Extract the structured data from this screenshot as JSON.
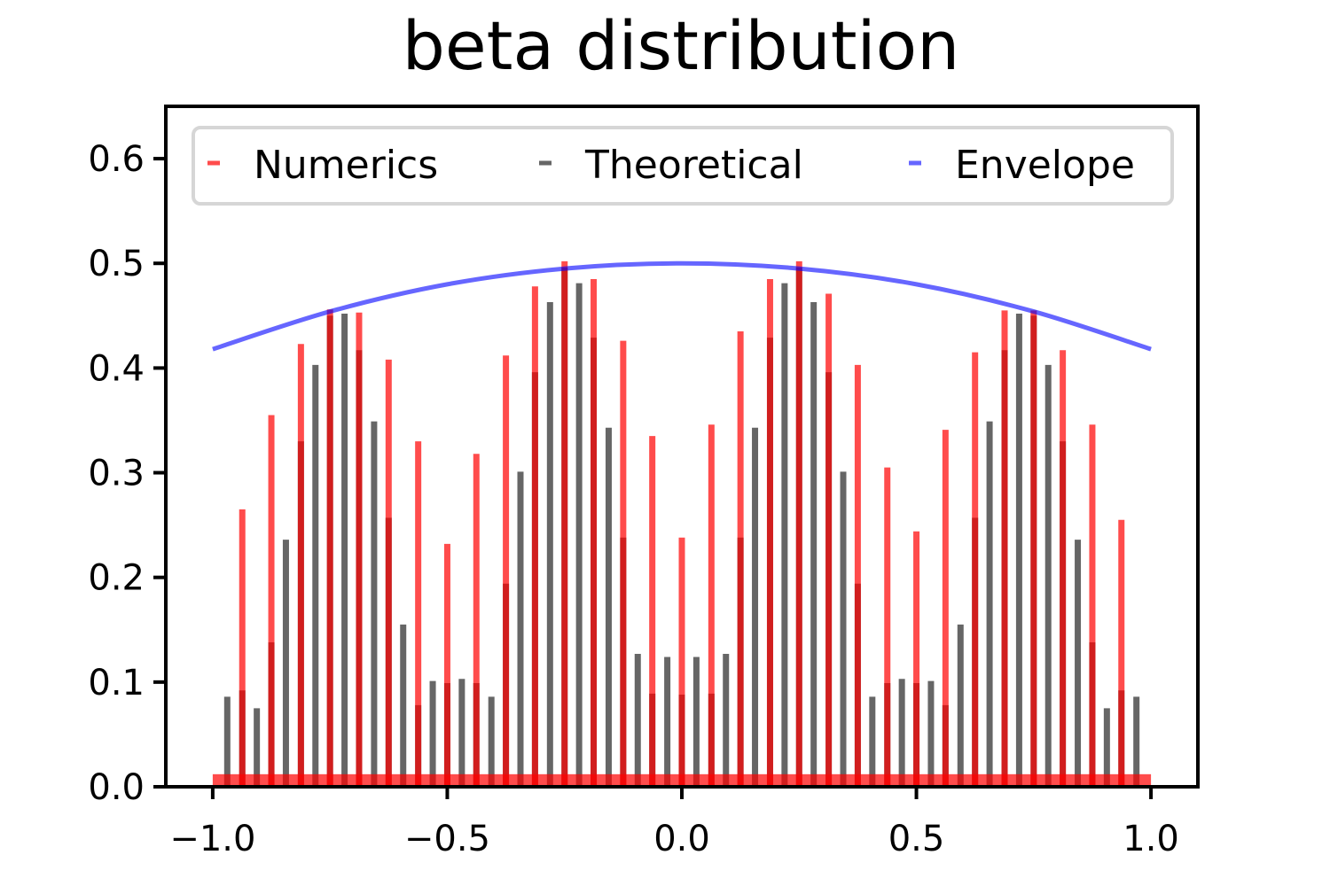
{
  "chart_data": {
    "type": "line",
    "title": "beta distribution",
    "xlabel": "",
    "ylabel": "",
    "xlim": [
      -1.1,
      1.1
    ],
    "ylim": [
      0.0,
      0.65
    ],
    "xticks": [
      -1.0,
      -0.5,
      0.0,
      0.5,
      1.0
    ],
    "xtick_labels": [
      "−1.0",
      "−0.5",
      "0.0",
      "0.5",
      "1.0"
    ],
    "yticks": [
      0.0,
      0.1,
      0.2,
      0.3,
      0.4,
      0.5,
      0.6
    ],
    "ytick_labels": [
      "0.0",
      "0.1",
      "0.2",
      "0.3",
      "0.4",
      "0.5",
      "0.6"
    ],
    "legend": {
      "placement": "top",
      "entries": [
        "Numerics",
        "Theoretical",
        "Envelope"
      ]
    },
    "colors": {
      "numerics": "#ff0000",
      "theoretical": "#000000",
      "envelope": "#0000ff"
    },
    "series": [
      {
        "name": "Numerics",
        "kind": "spikes",
        "baseline": 0.012,
        "x": [
          -0.937,
          -0.875,
          -0.812,
          -0.75,
          -0.688,
          -0.625,
          -0.562,
          -0.5,
          -0.438,
          -0.375,
          -0.313,
          -0.25,
          -0.188,
          -0.125,
          -0.063,
          0.0,
          0.063,
          0.125,
          0.188,
          0.25,
          0.313,
          0.375,
          0.438,
          0.5,
          0.562,
          0.625,
          0.688,
          0.75,
          0.812,
          0.875,
          0.937
        ],
        "values": [
          0.265,
          0.355,
          0.423,
          0.456,
          0.453,
          0.408,
          0.33,
          0.232,
          0.318,
          0.412,
          0.478,
          0.502,
          0.485,
          0.426,
          0.335,
          0.238,
          0.346,
          0.435,
          0.485,
          0.502,
          0.471,
          0.403,
          0.305,
          0.244,
          0.341,
          0.415,
          0.455,
          0.455,
          0.417,
          0.346,
          0.255
        ]
      },
      {
        "name": "Theoretical",
        "kind": "spikes",
        "x": [
          -0.969,
          -0.937,
          -0.906,
          -0.875,
          -0.844,
          -0.812,
          -0.781,
          -0.75,
          -0.719,
          -0.688,
          -0.656,
          -0.625,
          -0.594,
          -0.562,
          -0.531,
          -0.5,
          -0.469,
          -0.438,
          -0.406,
          -0.375,
          -0.344,
          -0.313,
          -0.281,
          -0.25,
          -0.219,
          -0.188,
          -0.156,
          -0.125,
          -0.094,
          -0.063,
          -0.031,
          0.0,
          0.031,
          0.063,
          0.094,
          0.125,
          0.156,
          0.188,
          0.219,
          0.25,
          0.281,
          0.313,
          0.344,
          0.375,
          0.406,
          0.438,
          0.469,
          0.5,
          0.531,
          0.562,
          0.594,
          0.625,
          0.656,
          0.688,
          0.719,
          0.75,
          0.781,
          0.812,
          0.844,
          0.875,
          0.906,
          0.937,
          0.969
        ],
        "values": [
          0.086,
          0.092,
          0.075,
          0.138,
          0.236,
          0.33,
          0.403,
          0.45,
          0.452,
          0.417,
          0.349,
          0.257,
          0.155,
          0.078,
          0.101,
          0.099,
          0.103,
          0.099,
          0.086,
          0.194,
          0.301,
          0.396,
          0.463,
          0.496,
          0.481,
          0.429,
          0.343,
          0.238,
          0.127,
          0.089,
          0.124,
          0.088,
          0.124,
          0.089,
          0.127,
          0.238,
          0.343,
          0.429,
          0.481,
          0.496,
          0.463,
          0.396,
          0.301,
          0.194,
          0.086,
          0.099,
          0.103,
          0.099,
          0.101,
          0.078,
          0.155,
          0.257,
          0.349,
          0.417,
          0.452,
          0.45,
          0.403,
          0.33,
          0.236,
          0.138,
          0.075,
          0.092,
          0.086
        ]
      },
      {
        "name": "Envelope",
        "kind": "line",
        "x": [
          -1.0,
          -0.75,
          -0.5,
          -0.25,
          0.0,
          0.25,
          0.5,
          0.75,
          1.0
        ],
        "values": [
          0.418,
          0.454,
          0.48,
          0.495,
          0.5,
          0.495,
          0.48,
          0.454,
          0.418
        ]
      }
    ]
  }
}
